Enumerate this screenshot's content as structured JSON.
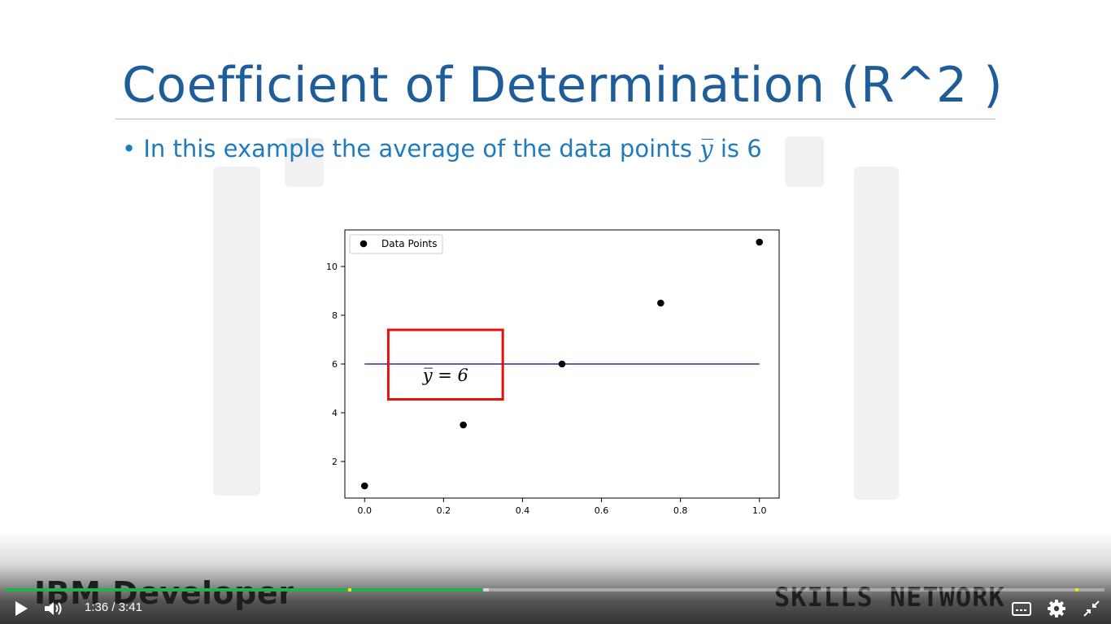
{
  "slide": {
    "title": "Coefficient of Determination (R^2 )",
    "bullet_marker": "•",
    "bullet_text": "In this example the average of the data points",
    "bullet_symbol": "y̅",
    "bullet_suffix": "is 6"
  },
  "chart_data": {
    "type": "scatter",
    "series": [
      {
        "name": "Data Points",
        "x": [
          0.0,
          0.25,
          0.5,
          0.75,
          1.0
        ],
        "y": [
          1,
          3.5,
          6,
          8.5,
          11
        ],
        "color": "#000000"
      }
    ],
    "mean_line": {
      "y": 6,
      "x_range": [
        0.0,
        1.0
      ],
      "color": "#00008b"
    },
    "annotation": {
      "text": "y̅ = 6",
      "box_color": "#e3120b",
      "x_range": [
        0.06,
        0.35
      ],
      "y_range": [
        4.55,
        7.4
      ]
    },
    "xticks": [
      "0.0",
      "0.2",
      "0.4",
      "0.6",
      "0.8",
      "1.0"
    ],
    "yticks": [
      "2",
      "4",
      "6",
      "8",
      "10"
    ],
    "xlim": [
      -0.05,
      1.05
    ],
    "ylim": [
      0.5,
      11.5
    ],
    "legend_position": "top-left",
    "grid": false
  },
  "watermark": {
    "left": "IBM Developer",
    "right": "SKILLS NETWORK"
  },
  "player": {
    "current_time": "1:36",
    "separator": "/",
    "duration": "3:41",
    "played_fraction": 0.435,
    "buffered_fraction": 0.44,
    "accent_color": "#22b24c",
    "marker_color": "#f1e31b",
    "icons": [
      "play-icon",
      "volume-icon",
      "captions-icon",
      "gear-icon",
      "exit-fullscreen-icon"
    ]
  }
}
